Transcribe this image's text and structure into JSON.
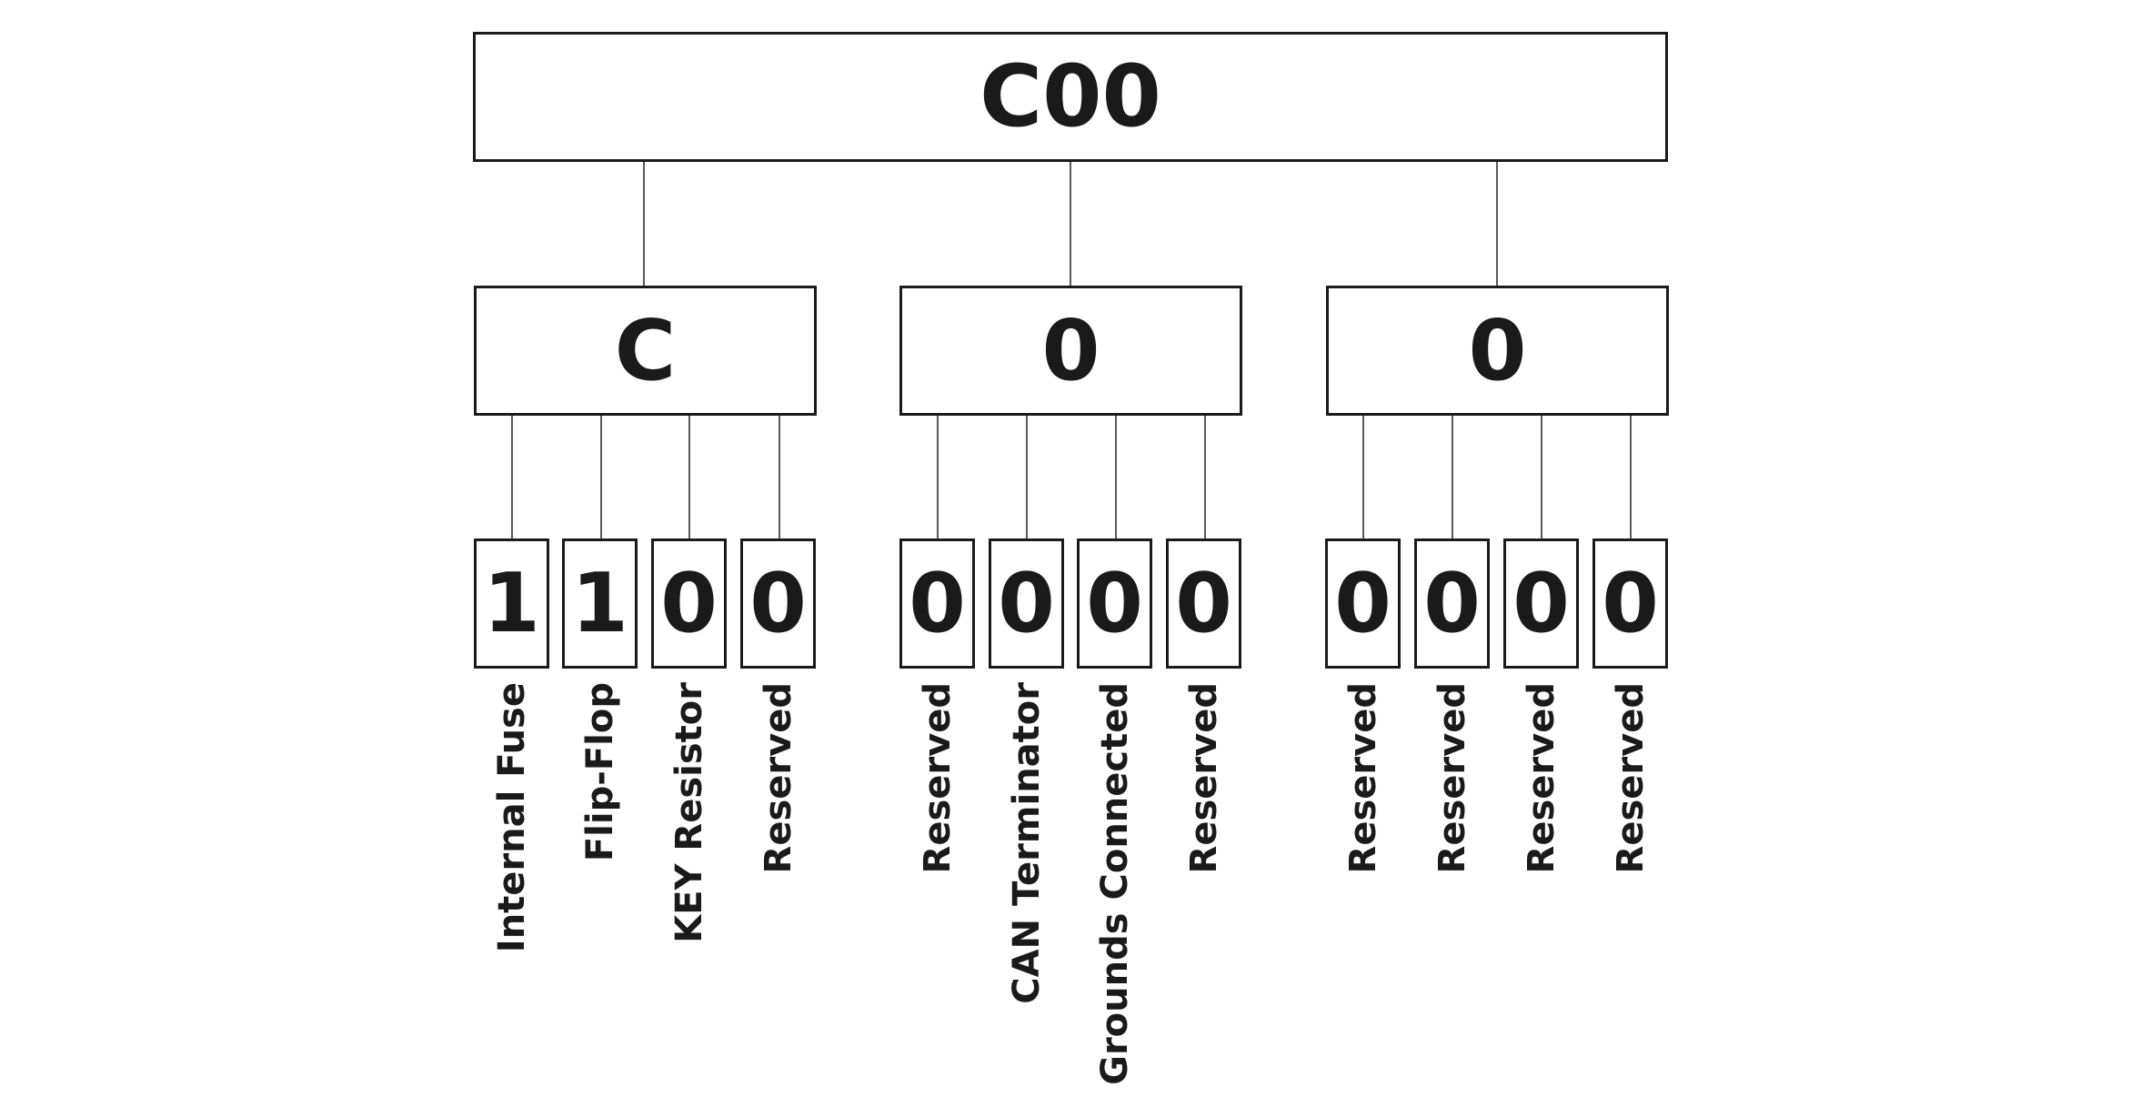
{
  "root": {
    "label": "C00"
  },
  "nibbles": [
    {
      "label": "C",
      "bits": [
        {
          "value": "1",
          "label": "Internal Fuse"
        },
        {
          "value": "1",
          "label": "Flip-Flop"
        },
        {
          "value": "0",
          "label": "KEY Resistor"
        },
        {
          "value": "0",
          "label": "Reserved"
        }
      ]
    },
    {
      "label": "0",
      "bits": [
        {
          "value": "0",
          "label": "Reserved"
        },
        {
          "value": "0",
          "label": "CAN Terminator"
        },
        {
          "value": "0",
          "label": "Grounds Connected"
        },
        {
          "value": "0",
          "label": "Reserved"
        }
      ]
    },
    {
      "label": "0",
      "bits": [
        {
          "value": "0",
          "label": "Reserved"
        },
        {
          "value": "0",
          "label": "Reserved"
        },
        {
          "value": "0",
          "label": "Reserved"
        },
        {
          "value": "0",
          "label": "Reserved"
        }
      ]
    }
  ]
}
